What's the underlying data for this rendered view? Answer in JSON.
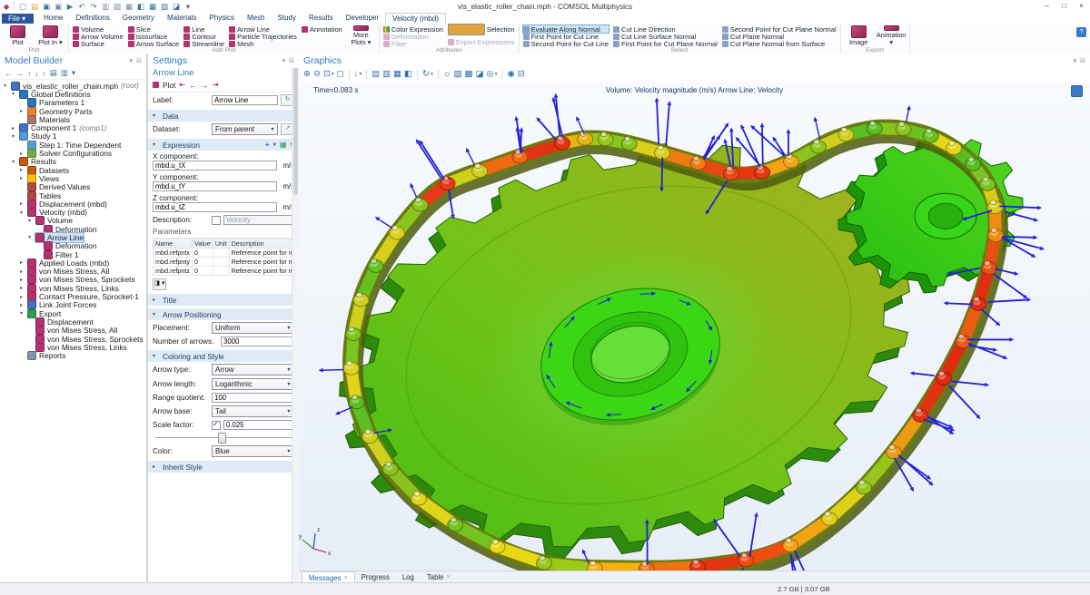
{
  "window": {
    "title": "vis_elastic_roller_chain.mph - COMSOL Multiphysics",
    "controls": {
      "minimize": "–",
      "maximize": "□",
      "close": "×"
    }
  },
  "quick_access": {
    "icons": [
      {
        "name": "app-icon",
        "glyph": "◆",
        "color": "#b23a63"
      },
      {
        "name": "new-file-icon",
        "glyph": "▢",
        "color": "#5b7fae"
      },
      {
        "name": "open-file-icon",
        "glyph": "▤",
        "color": "#d9a33c"
      },
      {
        "name": "save-icon",
        "glyph": "▣",
        "color": "#3a6ea5"
      },
      {
        "name": "save-as-icon",
        "glyph": "▣",
        "color": "#6a8ab5"
      },
      {
        "name": "run-icon",
        "glyph": "▶",
        "color": "#2e8b57"
      },
      {
        "name": "undo-icon",
        "glyph": "↶",
        "color": "#3a6ea5"
      },
      {
        "name": "redo-icon",
        "glyph": "↷",
        "color": "#3a6ea5"
      },
      {
        "name": "copy-icon",
        "glyph": "▥",
        "color": "#7a8aa0"
      },
      {
        "name": "duplicate-icon",
        "glyph": "▧",
        "color": "#7a8aa0"
      },
      {
        "name": "paste-icon",
        "glyph": "▦",
        "color": "#7a8aa0"
      },
      {
        "name": "delete-icon",
        "glyph": "◧",
        "color": "#3a6ea5"
      },
      {
        "name": "table-window-icon",
        "glyph": "▦",
        "color": "#3a6ea5"
      },
      {
        "name": "plot-window-icon",
        "glyph": "▨",
        "color": "#3a6ea5"
      },
      {
        "name": "reset-desktop-icon",
        "glyph": "◪",
        "color": "#3a6ea5"
      },
      {
        "name": "qa-dropdown-icon",
        "glyph": "▾",
        "color": "#55606c"
      }
    ]
  },
  "ribbon": {
    "file_label": "File ▾",
    "tabs": [
      {
        "label": "Home"
      },
      {
        "label": "Definitions"
      },
      {
        "label": "Geometry"
      },
      {
        "label": "Materials"
      },
      {
        "label": "Physics"
      },
      {
        "label": "Mesh"
      },
      {
        "label": "Study"
      },
      {
        "label": "Results"
      },
      {
        "label": "Developer"
      },
      {
        "label": "Velocity (mbd)",
        "active": true
      }
    ],
    "help_glyph": "?",
    "groups": [
      {
        "label": "Plot",
        "big": [
          {
            "label": "Plot"
          },
          {
            "label": "Plot In",
            "dropdown": true
          }
        ]
      },
      {
        "label": "Add Plot",
        "cols": [
          [
            "Volume",
            "Arrow Volume",
            "Surface"
          ],
          [
            "Slice",
            "Isosurface",
            "Arrow Surface"
          ],
          [
            "Line",
            "Contour",
            "Streamline"
          ],
          [
            "Arrow Line",
            "Particle Trajectories",
            "Mesh"
          ],
          [
            "Annotation"
          ]
        ],
        "big": [
          {
            "label": "More Plots",
            "dropdown": true
          }
        ]
      },
      {
        "label": "Attributes",
        "cols": [
          [
            "Color Expression",
            "Deformation",
            "Filter"
          ],
          [
            "Selection",
            "Export Expressions"
          ]
        ],
        "disabled": [
          "Deformation",
          "Filter",
          "Export Expressions"
        ],
        "icon_overrides": {
          "Color Expression": "rainbow",
          "Selection": "sel"
        }
      },
      {
        "label": "Select",
        "cols": [
          [
            "Evaluate Along Normal",
            "First Point for Cut Line",
            "Second Point for Cut Line"
          ],
          [
            "Cut Line Direction",
            "Cut Line Surface Normal",
            "First Point for Cut Plane Normal"
          ],
          [
            "Second Point for Cut Plane Normal",
            "Cut Plane Normal",
            "Cut Plane Normal from Surface"
          ]
        ],
        "highlighted": "Evaluate Along Normal",
        "icon_class": "cut"
      },
      {
        "label": "Export",
        "big": [
          {
            "label": "Image"
          },
          {
            "label": "Animation",
            "dropdown": true
          }
        ]
      }
    ]
  },
  "model_builder": {
    "title": "Model Builder",
    "toolbar_icons": [
      {
        "name": "back-icon",
        "glyph": "←"
      },
      {
        "name": "forward-icon",
        "glyph": "→"
      },
      {
        "name": "move-up-icon",
        "glyph": "↑"
      },
      {
        "name": "move-down-icon",
        "glyph": "↓"
      },
      {
        "name": "collapse-all-icon",
        "glyph": "↕"
      },
      {
        "name": "show-options-icon",
        "glyph": "▤"
      },
      {
        "name": "model-tree-node-icon",
        "glyph": "▥"
      },
      {
        "name": "toolbar-dropdown-icon",
        "glyph": "▾"
      }
    ],
    "tree": [
      {
        "label": "vis_elastic_roller_chain.mph",
        "suffix": "(root)",
        "level": 0,
        "caret": "e",
        "color": "#4472c4"
      },
      {
        "label": "Global Definitions",
        "level": 1,
        "caret": "e",
        "color": "#2e75b6"
      },
      {
        "label": "Parameters 1",
        "level": 2,
        "caret": "n",
        "color": "#2e75b6"
      },
      {
        "label": "Geometry Parts",
        "level": 2,
        "caret": "c",
        "color": "#ed7d31"
      },
      {
        "label": "Materials",
        "level": 2,
        "caret": "n",
        "color": "#a9746a"
      },
      {
        "label": "Component 1",
        "suffix": "(comp1)",
        "level": 1,
        "caret": "c",
        "color": "#4472c4"
      },
      {
        "label": "Study 1",
        "level": 1,
        "caret": "e",
        "color": "#5b9bd5"
      },
      {
        "label": "Step 1: Time Dependent",
        "level": 2,
        "caret": "n",
        "color": "#5b9bd5"
      },
      {
        "label": "Solver Configurations",
        "level": 2,
        "caret": "c",
        "color": "#70ad47"
      },
      {
        "label": "Results",
        "level": 1,
        "caret": "e",
        "color": "#c55a11"
      },
      {
        "label": "Datasets",
        "level": 2,
        "caret": "c",
        "color": "#c55a11"
      },
      {
        "label": "Views",
        "level": 2,
        "caret": "c",
        "color": "#ffc000"
      },
      {
        "label": "Derived Values",
        "level": 2,
        "caret": "n",
        "color": "#b04a4a"
      },
      {
        "label": "Tables",
        "level": 2,
        "caret": "n",
        "color": "#b04a4a"
      },
      {
        "label": "Displacement (mbd)",
        "level": 2,
        "caret": "c",
        "color": "#b5326e"
      },
      {
        "label": "Velocity (mbd)",
        "level": 2,
        "caret": "e",
        "color": "#b5326e"
      },
      {
        "label": "Volume",
        "level": 3,
        "caret": "e",
        "color": "#b5326e"
      },
      {
        "label": "Deformation",
        "level": 4,
        "caret": "n",
        "color": "#b5326e"
      },
      {
        "label": "Arrow Line",
        "level": 3,
        "caret": "e",
        "color": "#b5326e",
        "sel": true
      },
      {
        "label": "Deformation",
        "level": 4,
        "caret": "n",
        "color": "#b5326e"
      },
      {
        "label": "Filter 1",
        "level": 4,
        "caret": "n",
        "color": "#b5326e"
      },
      {
        "label": "Applied Loads (mbd)",
        "level": 2,
        "caret": "c",
        "color": "#b5326e"
      },
      {
        "label": "von Mises Stress, All",
        "level": 2,
        "caret": "c",
        "color": "#b5326e"
      },
      {
        "label": "von Mises Stress, Sprockets",
        "level": 2,
        "caret": "c",
        "color": "#b5326e"
      },
      {
        "label": "von Mises Stress, Links",
        "level": 2,
        "caret": "c",
        "color": "#b5326e"
      },
      {
        "label": "Contact Pressure, Sprocket-1",
        "level": 2,
        "caret": "c",
        "color": "#b5326e"
      },
      {
        "label": "Link Joint Forces",
        "level": 2,
        "caret": "c",
        "color": "#4472c4"
      },
      {
        "label": "Export",
        "level": 2,
        "caret": "e",
        "color": "#2e9e4f"
      },
      {
        "label": "Displacement",
        "level": 3,
        "caret": "n",
        "color": "#b5326e"
      },
      {
        "label": "von Mises Stress, All",
        "level": 3,
        "caret": "n",
        "color": "#b5326e"
      },
      {
        "label": "von Mises Stress, Sprockets",
        "level": 3,
        "caret": "n",
        "color": "#b5326e"
      },
      {
        "label": "von Mises Stress, Links",
        "level": 3,
        "caret": "n",
        "color": "#b5326e"
      },
      {
        "label": "Reports",
        "level": 2,
        "caret": "n",
        "color": "#8496ab"
      }
    ]
  },
  "settings": {
    "title": "Settings",
    "subtitle": "Arrow Line",
    "toolbar": {
      "plot_label": "Plot"
    },
    "label_field": {
      "label": "Label:",
      "value": "Arrow Line"
    },
    "data_section": {
      "title": "Data",
      "dataset_label": "Dataset:",
      "dataset_value": "From parent"
    },
    "expression": {
      "title": "Expression",
      "x_label": "X component:",
      "x_value": "mbd.u_tX",
      "x_unit": "m/s",
      "y_label": "Y component:",
      "y_value": "mbd.u_tY",
      "y_unit": "m/s",
      "z_label": "Z component:",
      "z_value": "mbd.u_tZ",
      "z_unit": "m/s",
      "desc_label": "Description:",
      "desc_value": "Velocity",
      "params_label": "Parameters",
      "headers": [
        "Name",
        "Value",
        "Unit",
        "Description"
      ],
      "rows": [
        [
          "mbd.refpntx",
          "0",
          "",
          "Reference point for momen..."
        ],
        [
          "mbd.refpnty",
          "0",
          "",
          "Reference point for momen..."
        ],
        [
          "mbd.refpntz",
          "0",
          "",
          "Reference point for momen..."
        ]
      ]
    },
    "title_section": "Title",
    "arrow_positioning": {
      "title": "Arrow Positioning",
      "placement_label": "Placement:",
      "placement_value": "Uniform",
      "number_label": "Number of arrows:",
      "number_value": "3000"
    },
    "coloring": {
      "title": "Coloring and Style",
      "arrow_type_label": "Arrow type:",
      "arrow_type_value": "Arrow",
      "arrow_length_label": "Arrow length:",
      "arrow_length_value": "Logarithmic",
      "range_label": "Range quotient:",
      "range_value": "100",
      "base_label": "Arrow base:",
      "base_value": "Tail",
      "scale_label": "Scale factor:",
      "scale_value": "0.025",
      "color_label": "Color:",
      "color_value": "Blue"
    },
    "inherit_section": "Inherit Style"
  },
  "graphics": {
    "title": "Graphics",
    "time_label": "Time=0.083 s",
    "plot_title": "Volume: Velocity magnitude (m/s)   Arrow Line: Velocity",
    "toolbar_icons": [
      {
        "name": "zoom-in-icon",
        "glyph": "⊕"
      },
      {
        "name": "zoom-out-icon",
        "glyph": "⊖"
      },
      {
        "name": "zoom-extents-icon",
        "glyph": "⊡"
      },
      {
        "name": "zoom-dropdown-icon",
        "glyph": "▾",
        "dd": true
      },
      {
        "name": "zoom-box-icon",
        "glyph": "◻"
      },
      {
        "sep": true
      },
      {
        "name": "go-to-default-view-icon",
        "glyph": "↓"
      },
      {
        "name": "view-dropdown-icon",
        "glyph": "▾",
        "dd": true
      },
      {
        "sep": true
      },
      {
        "name": "view-xy-plane-icon",
        "glyph": "▤"
      },
      {
        "name": "view-yz-plane-icon",
        "glyph": "▥"
      },
      {
        "name": "view-zx-plane-icon",
        "glyph": "▦"
      },
      {
        "name": "view-flip-icon",
        "glyph": "◧"
      },
      {
        "sep": true
      },
      {
        "name": "rotate-view-icon",
        "glyph": "↻"
      },
      {
        "name": "rotate-dropdown-icon",
        "glyph": "▾",
        "dd": true
      },
      {
        "sep": true
      },
      {
        "name": "scene-light-icon",
        "glyph": "☼"
      },
      {
        "name": "transparency-icon",
        "glyph": "▨"
      },
      {
        "name": "environment-icon",
        "glyph": "▩"
      },
      {
        "name": "clip-planes-icon",
        "glyph": "◪"
      },
      {
        "name": "plot-settings-icon",
        "glyph": "◎"
      },
      {
        "name": "settings-dropdown-icon",
        "glyph": "▾",
        "dd": true
      },
      {
        "sep": true
      },
      {
        "name": "snapshot-icon",
        "glyph": "◉"
      },
      {
        "name": "print-icon",
        "glyph": "⊟"
      }
    ],
    "axis": {
      "x": "x",
      "y": "y",
      "z": "z"
    }
  },
  "bottom_tabs": [
    {
      "label": "Messages",
      "closable": true,
      "active": true
    },
    {
      "label": "Progress"
    },
    {
      "label": "Log"
    },
    {
      "label": "Table",
      "closable": true
    }
  ],
  "status_bar": {
    "memory": "2.7 GB | 3.07 GB"
  },
  "scene": {
    "arrow_color": "#2121d8",
    "gear_face_from": "#45bd13",
    "gear_face_mid": "#72c318",
    "gear_face_to": "#a9ae1d",
    "gear_side": "#2e8a0d",
    "gear_edge": "#226606",
    "hub_outer": "#3cd714",
    "hub_mid": "#2fc20f",
    "hub_hole": "#66df38",
    "sprocket_from": "#25c011",
    "sprocket_to": "#57d61f",
    "sprocket_side": "#1b9407",
    "sprocket_edge": "#156206",
    "chain_shadow": "#4d5c0c",
    "chain_band": "#6b7a12",
    "link_colors": [
      "#e33212",
      "#ef6a10",
      "#cfd01d",
      "#e83818",
      "#8cc41e",
      "#d9cf1f",
      "#66c11f",
      "#cfd01d",
      "#7cc41f",
      "#e0d41c",
      "#5cbe20",
      "#cdd11e",
      "#8bc21e",
      "#dfd51b",
      "#74c220",
      "#e8d816",
      "#9cc81c",
      "#f2b214",
      "#ec7212",
      "#e03412",
      "#ee4f10",
      "#f2a313",
      "#dfd019",
      "#98c51d",
      "#eb9a12",
      "#e23210",
      "#de2b12",
      "#ea5c11",
      "#e12d10",
      "#e55111",
      "#ef8c13",
      "#d8cd1a",
      "#7cc41f",
      "#55bf22",
      "#e3d71a",
      "#6ac120",
      "#8cc41e",
      "#5abf22",
      "#cfd01d",
      "#8cc41e",
      "#f0a313",
      "#e23911",
      "#e84812",
      "#ef7b13",
      "#d9d01b",
      "#86c41e",
      "#9bc81d",
      "#e8b314"
    ],
    "arrow_strong": [
      0,
      1,
      3,
      18,
      19,
      20,
      21,
      24,
      25,
      26,
      27,
      28,
      29,
      30,
      31,
      40,
      41,
      42,
      43,
      44
    ]
  }
}
